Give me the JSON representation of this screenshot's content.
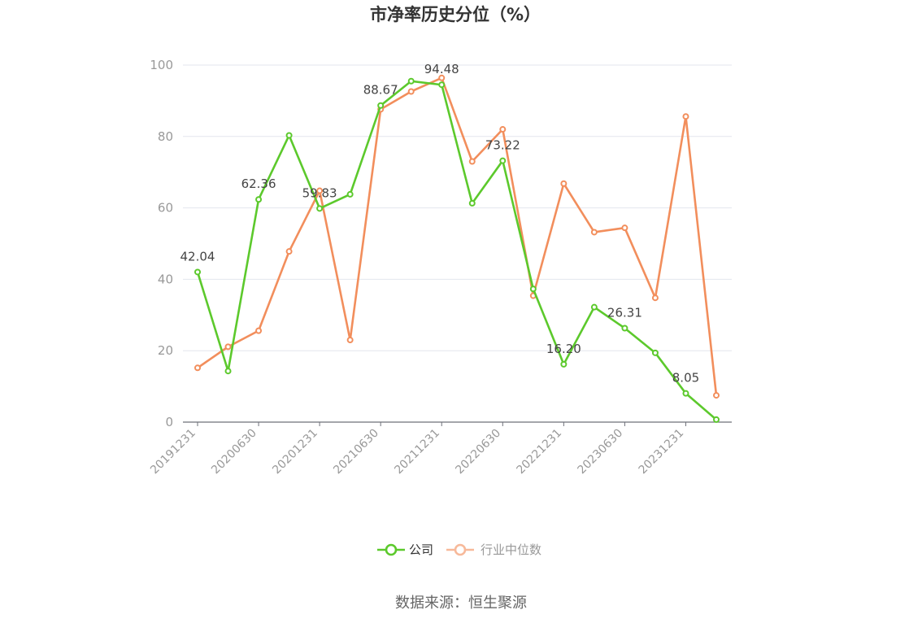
{
  "chart_data": {
    "type": "line",
    "title": "市净率历史分位（%）",
    "source": "数据来源：恒生聚源",
    "ylim": [
      0,
      100
    ],
    "yticks": [
      0,
      20,
      40,
      60,
      80,
      100
    ],
    "x": [
      "20191231",
      "20200331",
      "20200630",
      "20200930",
      "20201231",
      "20210331",
      "20210630",
      "20210930",
      "20211231",
      "20220331",
      "20220630",
      "20220930",
      "20221231",
      "20230331",
      "20230630",
      "20230930",
      "20231231",
      "20240331"
    ],
    "xtick_labels": [
      "20191231",
      "20200630",
      "20201231",
      "20210630",
      "20211231",
      "20220630",
      "20221231",
      "20230630",
      "20231231"
    ],
    "legend_position": "bottom-center",
    "grid": true,
    "series": [
      {
        "name": "公司",
        "color": "#5cc92c",
        "values": [
          42.04,
          14.3,
          62.36,
          80.3,
          59.83,
          63.8,
          88.67,
          95.5,
          94.48,
          61.3,
          73.22,
          37.3,
          16.2,
          32.2,
          26.31,
          19.4,
          8.05,
          0.7
        ],
        "labels": [
          {
            "index": 0,
            "text": "42.04"
          },
          {
            "index": 2,
            "text": "62.36"
          },
          {
            "index": 4,
            "text": "59.83"
          },
          {
            "index": 6,
            "text": "88.67"
          },
          {
            "index": 8,
            "text": "94.48"
          },
          {
            "index": 10,
            "text": "73.22"
          },
          {
            "index": 12,
            "text": "16.20"
          },
          {
            "index": 14,
            "text": "26.31"
          },
          {
            "index": 16,
            "text": "8.05"
          }
        ]
      },
      {
        "name": "行业中位数",
        "color": "#f28e5c",
        "values": [
          15.2,
          21.1,
          25.6,
          47.8,
          64.8,
          23.0,
          87.6,
          92.6,
          96.4,
          73.0,
          82.0,
          35.4,
          66.8,
          53.2,
          54.4,
          34.8,
          85.6,
          7.5
        ]
      }
    ]
  }
}
